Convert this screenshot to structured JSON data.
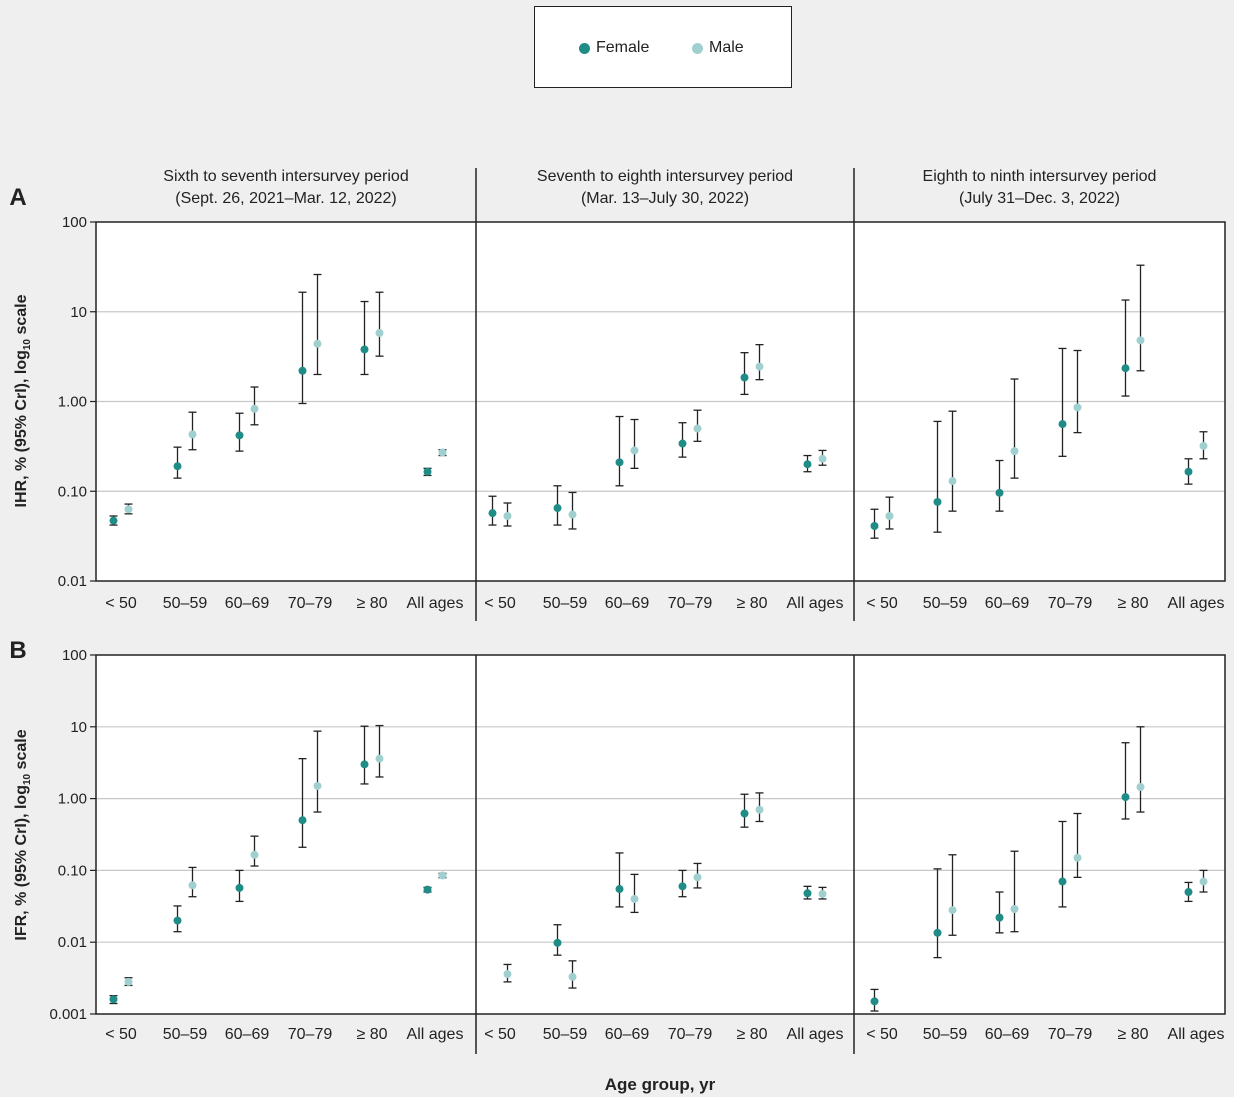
{
  "legend": {
    "female_label": "Female",
    "male_label": "Male"
  },
  "colors": {
    "female": "#1f8c86",
    "male": "#9fd0cf",
    "axis": "#222222",
    "grid": "#c8c8c8",
    "plot_bg": "#ffffff",
    "page_bg": "#efefef"
  },
  "x_axis_title": "Age group, yr",
  "chart_data": [
    {
      "panel": "A",
      "type": "scatter",
      "ylabel": "IHR, % (95% CrI), log10 scale",
      "yscale": "log",
      "ylim": [
        0.01,
        100
      ],
      "yticks": [
        "0.01",
        "0.10",
        "1.00",
        "10",
        "100"
      ],
      "categories": [
        "< 50",
        "50–59",
        "60–69",
        "70–79",
        "≥ 80",
        "All ages"
      ],
      "periods": [
        {
          "title_line1": "Sixth to seventh intersurvey period",
          "title_line2": "(Sept. 26, 2021–Mar. 12, 2022)",
          "series": [
            {
              "name": "Female",
              "values": [
                0.047,
                0.19,
                0.42,
                2.2,
                3.8,
                0.165
              ],
              "lower": [
                0.042,
                0.14,
                0.28,
                0.95,
                2.0,
                0.15
              ],
              "upper": [
                0.053,
                0.31,
                0.74,
                16.5,
                13,
                0.18
              ]
            },
            {
              "name": "Male",
              "values": [
                0.063,
                0.43,
                0.83,
                4.4,
                5.8,
                0.27
              ],
              "lower": [
                0.056,
                0.29,
                0.55,
                2.0,
                3.2,
                0.25
              ],
              "upper": [
                0.072,
                0.76,
                1.45,
                26,
                16.5,
                0.29
              ]
            }
          ]
        },
        {
          "title_line1": "Seventh to eighth intersurvey period",
          "title_line2": "(Mar. 13–July 30, 2022)",
          "series": [
            {
              "name": "Female",
              "values": [
                0.057,
                0.065,
                0.21,
                0.34,
                1.85,
                0.2
              ],
              "lower": [
                0.042,
                0.042,
                0.115,
                0.24,
                1.2,
                0.165
              ],
              "upper": [
                0.088,
                0.115,
                0.68,
                0.58,
                3.5,
                0.25
              ]
            },
            {
              "name": "Male",
              "values": [
                0.053,
                0.055,
                0.285,
                0.5,
                2.45,
                0.23
              ],
              "lower": [
                0.041,
                0.038,
                0.18,
                0.36,
                1.75,
                0.195
              ],
              "upper": [
                0.074,
                0.097,
                0.63,
                0.8,
                4.3,
                0.285
              ]
            }
          ]
        },
        {
          "title_line1": "Eighth to ninth intersurvey period",
          "title_line2": "(July 31–Dec. 3, 2022)",
          "series": [
            {
              "name": "Female",
              "values": [
                0.041,
                0.076,
                0.096,
                0.56,
                2.35,
                0.165
              ],
              "lower": [
                0.03,
                0.035,
                0.06,
                0.245,
                1.15,
                0.12
              ],
              "upper": [
                0.063,
                0.6,
                0.22,
                3.9,
                13.5,
                0.23
              ]
            },
            {
              "name": "Male",
              "values": [
                0.053,
                0.13,
                0.28,
                0.86,
                4.8,
                0.32
              ],
              "lower": [
                0.038,
                0.06,
                0.14,
                0.45,
                2.2,
                0.23
              ],
              "upper": [
                0.086,
                0.78,
                1.78,
                3.7,
                33,
                0.46
              ]
            }
          ]
        }
      ]
    },
    {
      "panel": "B",
      "type": "scatter",
      "ylabel": "IFR, % (95% CrI), log10 scale",
      "yscale": "log",
      "ylim": [
        0.001,
        100
      ],
      "yticks": [
        "0.001",
        "0.01",
        "0.10",
        "1.00",
        "10",
        "100"
      ],
      "categories": [
        "< 50",
        "50–59",
        "60–69",
        "70–79",
        "≥ 80",
        "All ages"
      ],
      "periods": [
        {
          "title_line1": "",
          "title_line2": "",
          "series": [
            {
              "name": "Female",
              "values": [
                0.0016,
                0.02,
                0.057,
                0.5,
                3.0,
                0.054
              ],
              "lower": [
                0.0014,
                0.014,
                0.037,
                0.21,
                1.6,
                0.05
              ],
              "upper": [
                0.0018,
                0.032,
                0.1,
                3.6,
                10.2,
                0.058
              ]
            },
            {
              "name": "Male",
              "values": [
                0.0028,
                0.062,
                0.165,
                1.5,
                3.6,
                0.085
              ],
              "lower": [
                0.0025,
                0.043,
                0.115,
                0.65,
                2.0,
                0.079
              ],
              "upper": [
                0.0032,
                0.11,
                0.3,
                8.7,
                10.4,
                0.091
              ]
            }
          ]
        },
        {
          "title_line1": "",
          "title_line2": "",
          "series": [
            {
              "name": "Female",
              "values": [
                null,
                0.0098,
                0.055,
                0.06,
                0.62,
                0.048
              ],
              "lower": [
                null,
                0.0066,
                0.031,
                0.043,
                0.4,
                0.04
              ],
              "upper": [
                null,
                0.0175,
                0.175,
                0.1,
                1.15,
                0.06
              ]
            },
            {
              "name": "Male",
              "values": [
                0.0036,
                0.0033,
                0.04,
                0.08,
                0.7,
                0.047
              ],
              "lower": [
                0.0028,
                0.0023,
                0.026,
                0.057,
                0.48,
                0.04
              ],
              "upper": [
                0.0049,
                0.0055,
                0.088,
                0.125,
                1.2,
                0.058
              ]
            }
          ]
        },
        {
          "title_line1": "",
          "title_line2": "",
          "series": [
            {
              "name": "Female",
              "values": [
                0.0015,
                0.0135,
                0.022,
                0.07,
                1.05,
                0.05
              ],
              "lower": [
                0.0011,
                0.0061,
                0.0135,
                0.031,
                0.52,
                0.037
              ],
              "upper": [
                0.0022,
                0.105,
                0.05,
                0.48,
                6.0,
                0.068
              ]
            },
            {
              "name": "Male",
              "values": [
                null,
                0.028,
                0.029,
                0.15,
                1.45,
                0.07
              ],
              "lower": [
                null,
                0.0125,
                0.014,
                0.08,
                0.65,
                0.05
              ],
              "upper": [
                null,
                0.165,
                0.185,
                0.62,
                10,
                0.1
              ]
            }
          ]
        }
      ]
    }
  ]
}
